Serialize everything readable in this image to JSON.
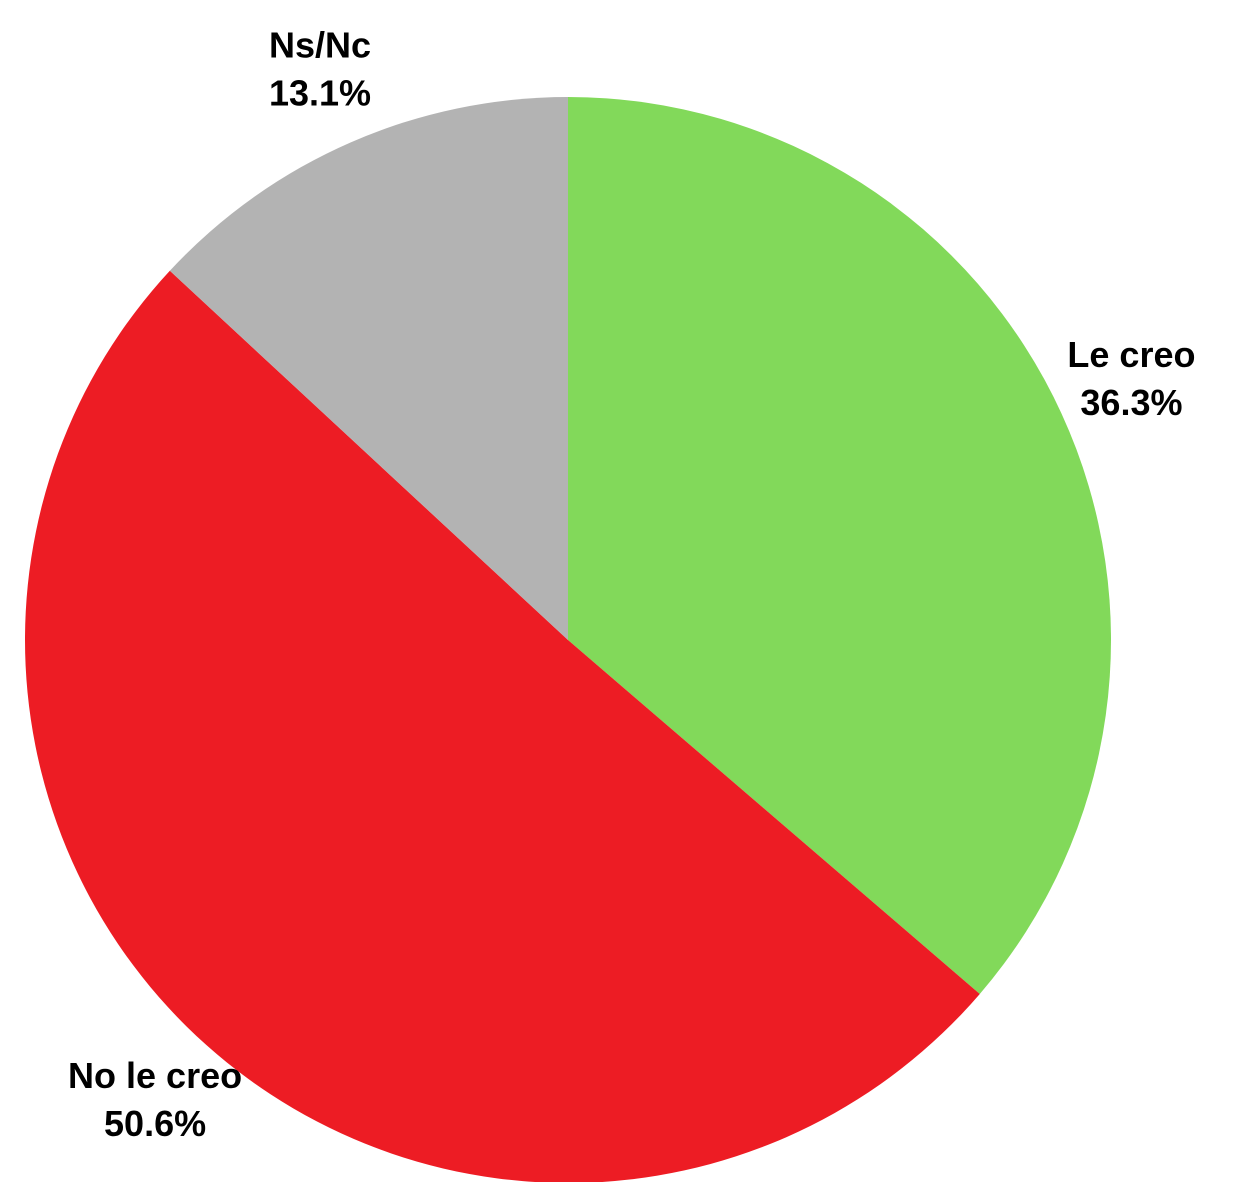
{
  "chart_data": {
    "type": "pie",
    "categories": [
      "Le creo",
      "No le creo",
      "Ns/Nc"
    ],
    "values": [
      36.3,
      50.6,
      13.1
    ],
    "value_labels": [
      "36.3%",
      "50.6%",
      "13.1%"
    ],
    "colors": [
      "#82d95a",
      "#ed1c24",
      "#b3b3b3"
    ]
  }
}
